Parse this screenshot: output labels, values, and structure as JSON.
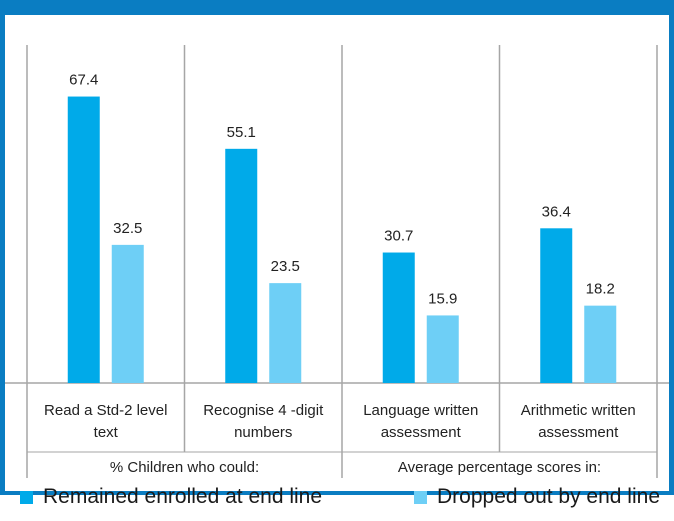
{
  "colors": {
    "frame": "#0a7dc2",
    "axis": "#a6a6a6",
    "series_0": "#00aae9",
    "series_1": "#6ecff6"
  },
  "chart_data": {
    "type": "bar",
    "categories": [
      [
        "Read a Std-2 level",
        "text"
      ],
      [
        "Recognise 4 -digit",
        "numbers"
      ],
      [
        "Language written",
        "assessment"
      ],
      [
        "Arithmetic written",
        "assessment"
      ]
    ],
    "groups": [
      {
        "label": "% Children who could:",
        "categories": [
          0,
          1
        ]
      },
      {
        "label": "Average percentage scores in:",
        "categories": [
          2,
          3
        ]
      }
    ],
    "series": [
      {
        "name": "Remained enrolled at end line",
        "values": [
          67.4,
          55.1,
          30.7,
          36.4
        ]
      },
      {
        "name": "Dropped out by end line",
        "values": [
          32.5,
          23.5,
          15.9,
          18.2
        ]
      }
    ],
    "ylim": [
      0,
      80
    ],
    "grid": false,
    "legend_position": "bottom"
  }
}
